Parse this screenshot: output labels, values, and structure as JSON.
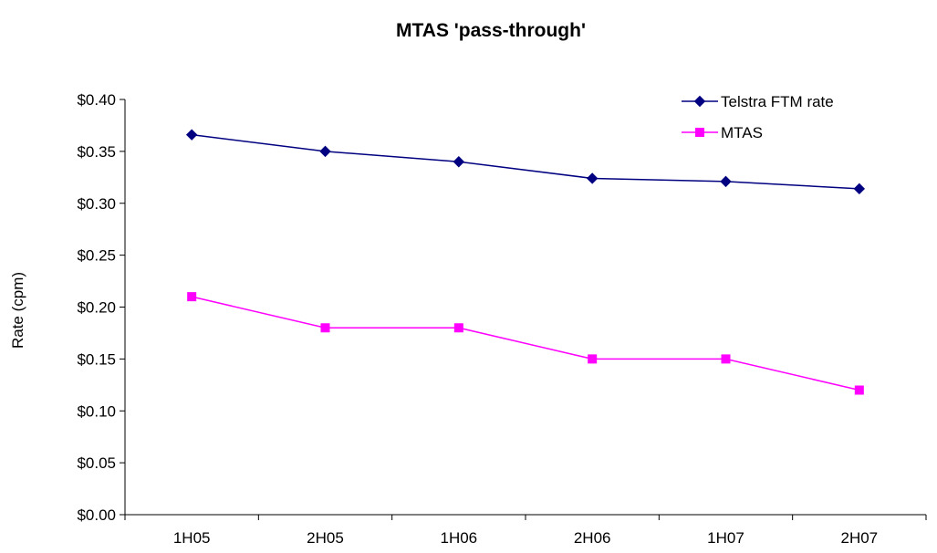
{
  "chart_data": {
    "type": "line",
    "title": "MTAS 'pass-through'",
    "xlabel": "",
    "ylabel": "Rate (cpm)",
    "categories": [
      "1H05",
      "2H05",
      "1H06",
      "2H06",
      "1H07",
      "2H07"
    ],
    "ylim": [
      0,
      0.4
    ],
    "yticks": [
      0.0,
      0.05,
      0.1,
      0.15,
      0.2,
      0.25,
      0.3,
      0.35,
      0.4
    ],
    "ytick_labels": [
      "$0.00",
      "$0.05",
      "$0.10",
      "$0.15",
      "$0.20",
      "$0.25",
      "$0.30",
      "$0.35",
      "$0.40"
    ],
    "grid": false,
    "legend_position": "top-right",
    "series": [
      {
        "name": "Telstra FTM rate",
        "values": [
          0.366,
          0.35,
          0.34,
          0.324,
          0.321,
          0.314
        ],
        "color": "#000080",
        "marker": "diamond"
      },
      {
        "name": "MTAS",
        "values": [
          0.21,
          0.18,
          0.18,
          0.15,
          0.15,
          0.12
        ],
        "color": "#FF00FF",
        "marker": "square"
      }
    ]
  }
}
